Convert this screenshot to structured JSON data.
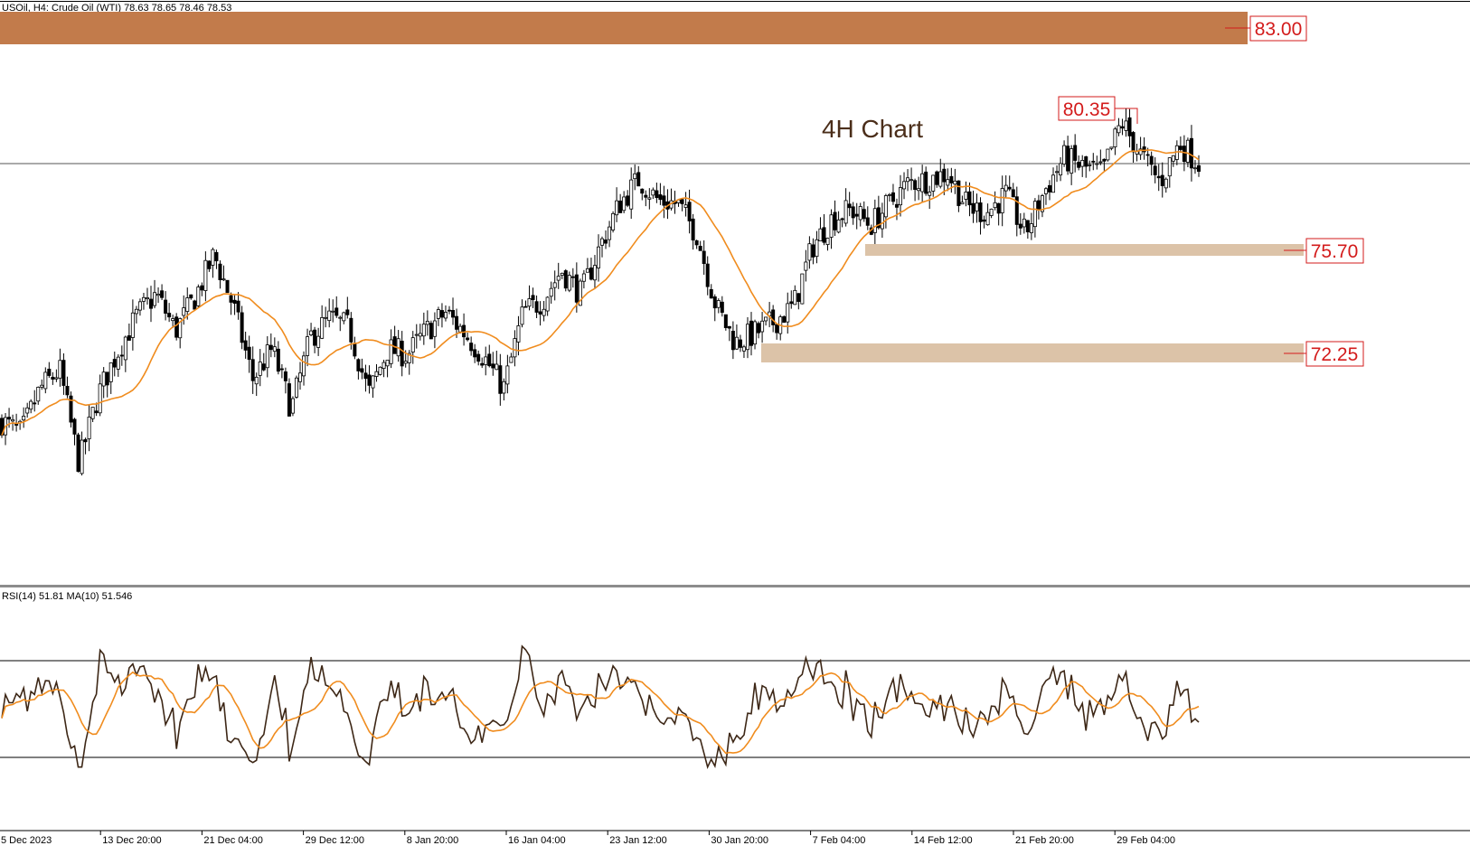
{
  "header": {
    "symbol_info": "USOil, H4:  Crude Oil (WTI)  78.63 78.65 78.46 78.53"
  },
  "annotation_title": "4H Chart",
  "levels": {
    "resistance_top": "83.00",
    "recent_high": "80.35",
    "support_1": "75.70",
    "support_2": "72.25"
  },
  "rsi_panel": {
    "label": "RSI(14) 51.81 MA(10) 51.546",
    "upper_level": 70,
    "lower_level": 30
  },
  "x_axis": {
    "ticks": [
      "5 Dec 2023",
      "13 Dec 20:00",
      "21 Dec 04:00",
      "29 Dec 12:00",
      "8 Jan 20:00",
      "16 Jan 04:00",
      "23 Jan 12:00",
      "30 Jan 20:00",
      "7 Feb 04:00",
      "14 Feb 12:00",
      "21 Feb 20:00",
      "29 Feb 04:00"
    ]
  },
  "colors": {
    "candles": "#000000",
    "moving_average": "#f08c1e",
    "rsi_line": "#3d2716",
    "rsi_ma": "#f08c1e",
    "resistance_zone": "#c27b4b",
    "support_zone": "#dcc3a8",
    "level_label": "#d31b1b"
  },
  "chart_data": {
    "type": "candlestick",
    "instrument": "USOil, H4: Crude Oil (WTI)",
    "timeframe": "H4",
    "last_ohlc": {
      "open": 78.63,
      "high": 78.65,
      "low": 78.46,
      "close": 78.53
    },
    "close_series_waypoints": [
      [
        "5 Dec 2023",
        70.0
      ],
      [
        "6 Dec",
        69.6
      ],
      [
        "8 Dec",
        71.1
      ],
      [
        "11 Dec",
        71.7
      ],
      [
        "12 Dec",
        68.6
      ],
      [
        "14 Dec",
        70.9
      ],
      [
        "15 Dec",
        72.3
      ],
      [
        "18 Dec",
        73.5
      ],
      [
        "19 Dec",
        74.2
      ],
      [
        "21 Dec",
        73.0
      ],
      [
        "22 Dec",
        74.1
      ],
      [
        "26 Dec",
        75.5
      ],
      [
        "27 Dec",
        73.8
      ],
      [
        "28 Dec",
        71.4
      ],
      [
        "29 Dec",
        72.4
      ],
      [
        "2 Jan",
        70.4
      ],
      [
        "3 Jan",
        72.8
      ],
      [
        "4 Jan",
        73.4
      ],
      [
        "5 Jan",
        73.1
      ],
      [
        "8 Jan",
        70.9
      ],
      [
        "9 Jan",
        72.4
      ],
      [
        "10 Jan",
        72.2
      ],
      [
        "11 Jan",
        73.0
      ],
      [
        "12 Jan",
        73.6
      ],
      [
        "15 Jan",
        72.9
      ],
      [
        "16 Jan",
        72.1
      ],
      [
        "17 Jan",
        71.1
      ],
      [
        "18 Jan",
        73.6
      ],
      [
        "19 Jan",
        74.0
      ],
      [
        "22 Jan",
        75.0
      ],
      [
        "23 Jan",
        74.2
      ],
      [
        "24 Jan",
        75.8
      ],
      [
        "25 Jan",
        77.2
      ],
      [
        "26 Jan",
        78.0
      ],
      [
        "29 Jan",
        77.3
      ],
      [
        "30 Jan",
        77.2
      ],
      [
        "31 Jan",
        76.2
      ],
      [
        "1 Feb",
        73.8
      ],
      [
        "2 Feb",
        72.6
      ],
      [
        "5 Feb",
        72.9
      ],
      [
        "6 Feb",
        73.3
      ],
      [
        "7 Feb",
        73.8
      ],
      [
        "8 Feb",
        75.8
      ],
      [
        "9 Feb",
        76.7
      ],
      [
        "12 Feb",
        77.0
      ],
      [
        "13 Feb",
        76.5
      ],
      [
        "14 Feb",
        77.2
      ],
      [
        "15 Feb",
        77.9
      ],
      [
        "16 Feb",
        78.0
      ],
      [
        "19 Feb",
        78.2
      ],
      [
        "20 Feb",
        77.1
      ],
      [
        "21 Feb",
        76.9
      ],
      [
        "22 Feb",
        77.5
      ],
      [
        "23 Feb",
        76.2
      ],
      [
        "26 Feb",
        77.6
      ],
      [
        "27 Feb",
        78.7
      ],
      [
        "28 Feb",
        78.4
      ],
      [
        "29 Feb",
        78.2
      ],
      [
        "1 Mar",
        79.9
      ],
      [
        "4 Mar",
        78.8
      ],
      [
        "5 Mar",
        77.9
      ],
      [
        "6 Mar",
        79.2
      ],
      [
        "7 Mar",
        78.53
      ]
    ],
    "moving_average": {
      "name": "MA",
      "color": "#f08c1e"
    },
    "horizontal_line": 78.53,
    "zones": [
      {
        "label": "83.00",
        "low": 82.7,
        "high": 83.6,
        "color": "#c27b4b"
      },
      {
        "label": "75.70",
        "low": 75.5,
        "high": 75.8,
        "color": "#dcc3a8"
      },
      {
        "label": "72.25",
        "low": 72.0,
        "high": 72.5,
        "color": "#dcc3a8"
      }
    ],
    "annotations": [
      {
        "label": "80.35",
        "value": 80.35
      }
    ],
    "rsi": {
      "period": 14,
      "value": 51.81,
      "ma_period": 10,
      "ma_value": 51.546,
      "levels": [
        70,
        30
      ],
      "range": [
        0,
        100
      ]
    }
  }
}
